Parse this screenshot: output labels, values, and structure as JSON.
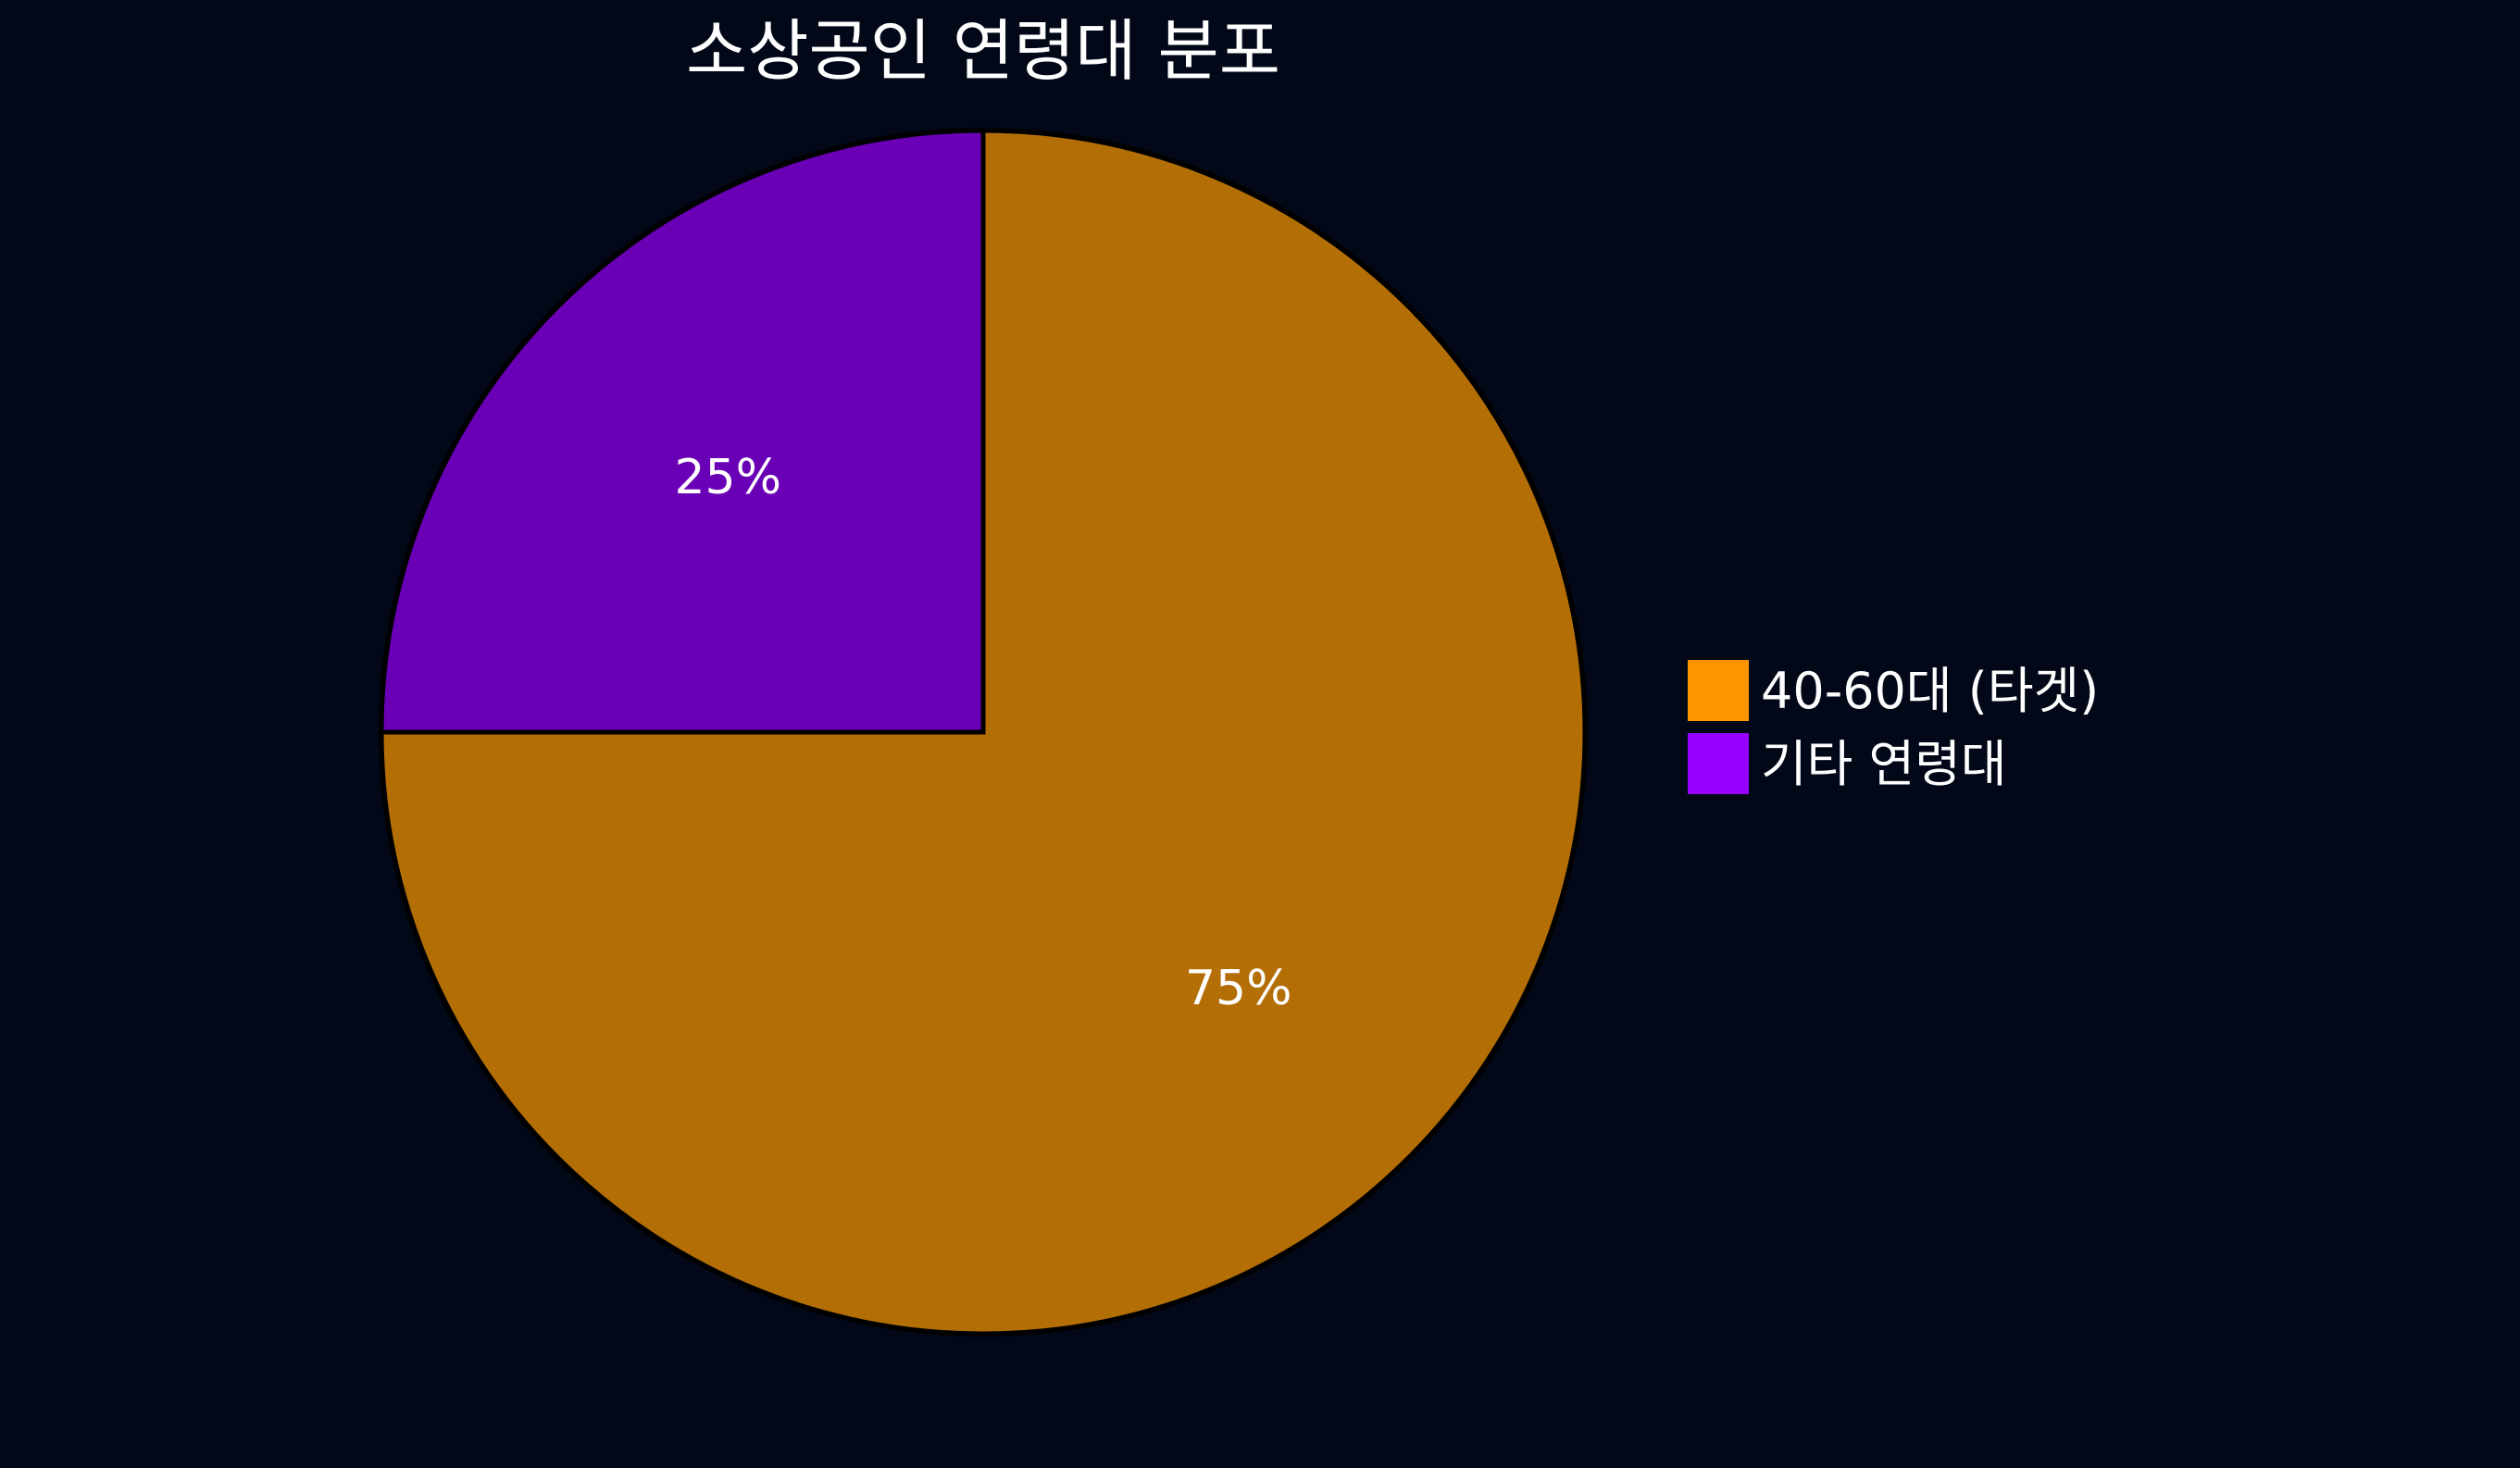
{
  "chart_data": {
    "type": "pie",
    "title": "소상공인 연령대 분포",
    "categories": [
      "40-60대 (타겟)",
      "기타 연령대"
    ],
    "values": [
      75,
      25
    ],
    "value_labels": [
      "75%",
      "25%"
    ],
    "colors": {
      "slices": [
        "#B36E06",
        "#6A00B5"
      ],
      "legend": [
        "#FF9500",
        "#9500FF"
      ],
      "background": "#020817",
      "slice_border": "#000000"
    },
    "start_angle": "12 o'clock, clockwise",
    "legend_position": "right"
  }
}
